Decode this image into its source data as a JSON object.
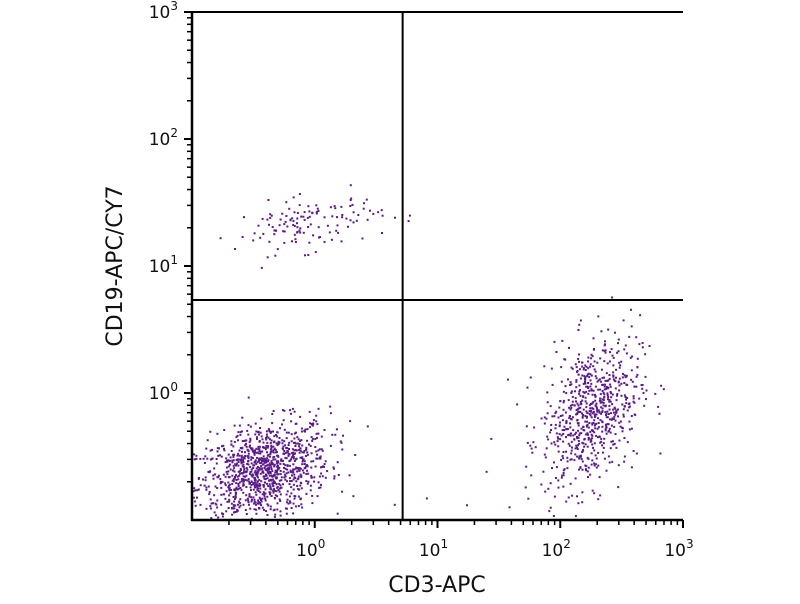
{
  "chart_data": {
    "type": "scatter",
    "title": "",
    "xlabel": "CD3-APC",
    "ylabel": "CD19-APC/CY7",
    "xscale": "log",
    "yscale": "log",
    "xlim": [
      0.1,
      1000
    ],
    "ylim": [
      0.1,
      1000
    ],
    "x_ticks": [
      {
        "base": "10",
        "exp": "0",
        "value": 1
      },
      {
        "base": "10",
        "exp": "1",
        "value": 10
      },
      {
        "base": "10",
        "exp": "2",
        "value": 100
      },
      {
        "base": "10",
        "exp": "3",
        "value": 1000
      }
    ],
    "y_ticks": [
      {
        "base": "10",
        "exp": "0",
        "value": 1
      },
      {
        "base": "10",
        "exp": "1",
        "value": 10
      },
      {
        "base": "10",
        "exp": "2",
        "value": 100
      },
      {
        "base": "10",
        "exp": "3",
        "value": 1000
      }
    ],
    "quadrant_gates": {
      "x": 5.2,
      "y": 5.4
    },
    "point_color": "#5b1a8c",
    "populations": [
      {
        "name": "CD3- CD19- (lower-left)",
        "count": 1100,
        "log_x_mean": -0.42,
        "log_x_sd": 0.27,
        "log_y_mean": -0.62,
        "log_y_sd": 0.22
      },
      {
        "name": "CD3- CD19+ (upper-left)",
        "count": 130,
        "log_x_mean": -0.05,
        "log_x_sd": 0.3,
        "log_y_mean": 1.33,
        "log_y_sd": 0.12
      },
      {
        "name": "CD3+ CD19- (lower-right)",
        "count": 720,
        "log_x_mean": 2.25,
        "log_x_sd": 0.2,
        "log_y_mean": -0.15,
        "log_y_sd": 0.33
      },
      {
        "name": "sparse events",
        "count": 6,
        "log_x_mean": 1.0,
        "log_x_sd": 0.35,
        "log_y_mean": -0.7,
        "log_y_sd": 0.2
      }
    ]
  }
}
